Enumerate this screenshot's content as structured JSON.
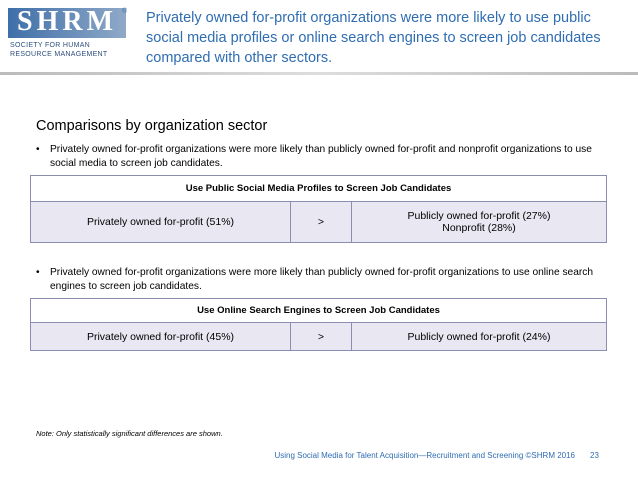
{
  "logo": {
    "name": "SHRM",
    "mark": "®",
    "line1": "SOCIETY FOR HUMAN",
    "line2": "RESOURCE MANAGEMENT"
  },
  "header": {
    "title": "Privately owned for-profit organizations were more likely to use public social media profiles or online search engines to screen job candidates compared with other sectors."
  },
  "section_title": "Comparisons by organization sector",
  "blocks": [
    {
      "bullet": "Privately owned for-profit organizations were more likely than publicly owned for-profit and nonprofit organizations to use social media to screen job candidates.",
      "table": {
        "title": "Use Public Social Media Profiles to Screen Job Candidates",
        "left": "Privately owned for-profit (51%)",
        "operator": ">",
        "right": [
          "Publicly owned for-profit (27%)",
          "Nonprofit (28%)"
        ]
      }
    },
    {
      "bullet": "Privately owned for-profit organizations were more likely than publicly owned for-profit organizations to use online search engines to screen job candidates.",
      "table": {
        "title": "Use Online Search Engines to Screen Job Candidates",
        "left": "Privately owned for-profit (45%)",
        "operator": ">",
        "right": [
          "Publicly owned for-profit (24%)"
        ]
      }
    }
  ],
  "note": "Note: Only statistically significant differences are shown.",
  "footer": {
    "source": "Using Social Media for Talent Acquisition—Recruitment and Screening ©SHRM 2016",
    "page": "23"
  }
}
